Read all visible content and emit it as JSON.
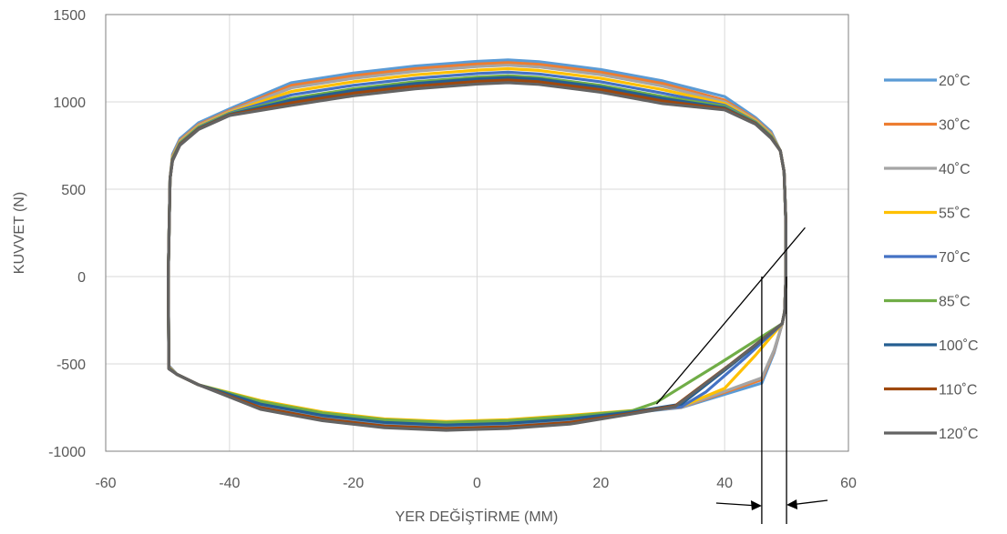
{
  "chart_data": {
    "type": "line",
    "title": "",
    "xlabel": "YER DEĞİŞTİRME  (MM)",
    "ylabel": "KUVVET  (N)",
    "xlim": [
      -60,
      60
    ],
    "ylim": [
      -1000,
      1500
    ],
    "xticks": [
      -60,
      -40,
      -20,
      0,
      20,
      40,
      60
    ],
    "yticks": [
      -1000,
      -500,
      0,
      500,
      1000,
      1500
    ],
    "x_tick_labels": [
      "-60",
      "-40",
      "-20",
      "0",
      "20",
      "40",
      "60"
    ],
    "y_tick_labels": [
      "-1000",
      "-500",
      "0",
      "500",
      "1000",
      "1500"
    ],
    "grid": true,
    "legend_position": "right",
    "series": [
      {
        "name": "20˚C",
        "color": "#5B9BD5",
        "peak_upper": 1240,
        "upper_offset": 20,
        "lower_min": -860,
        "knee_x": 46,
        "knee_y": -610
      },
      {
        "name": "30˚C",
        "color": "#ED7D31",
        "peak_upper": 1225,
        "upper_offset": 10,
        "lower_min": -850,
        "knee_x": 46,
        "knee_y": -590
      },
      {
        "name": "40˚C",
        "color": "#A5A5A5",
        "peak_upper": 1210,
        "upper_offset": 5,
        "lower_min": -845,
        "knee_x": 46,
        "knee_y": -580
      },
      {
        "name": "55˚C",
        "color": "#FFC000",
        "peak_upper": 1190,
        "upper_offset": 0,
        "lower_min": -830,
        "knee_x": 40,
        "knee_y": -640
      },
      {
        "name": "70˚C",
        "color": "#4472C4",
        "peak_upper": 1170,
        "upper_offset": -5,
        "lower_min": -840,
        "knee_x": 37,
        "knee_y": -660
      },
      {
        "name": "85˚C",
        "color": "#70AD47",
        "peak_upper": 1150,
        "upper_offset": -8,
        "lower_min": -835,
        "knee_x": 29,
        "knee_y": -720
      },
      {
        "name": "100˚C",
        "color": "#255E91",
        "peak_upper": 1140,
        "upper_offset": -12,
        "lower_min": -850,
        "knee_x": 33,
        "knee_y": -730
      },
      {
        "name": "110˚C",
        "color": "#9E480E",
        "peak_upper": 1125,
        "upper_offset": -15,
        "lower_min": -870,
        "knee_x": 32,
        "knee_y": -740
      },
      {
        "name": "120˚C",
        "color": "#636363",
        "peak_upper": 1110,
        "upper_offset": -18,
        "lower_min": -880,
        "knee_x": 32,
        "knee_y": -745
      }
    ],
    "annotations": {
      "tangent_line": {
        "from": [
          29,
          -730
        ],
        "to": [
          53,
          280
        ]
      },
      "vertical_lines": [
        46,
        50
      ],
      "arrows": [
        "right",
        "left"
      ]
    }
  }
}
